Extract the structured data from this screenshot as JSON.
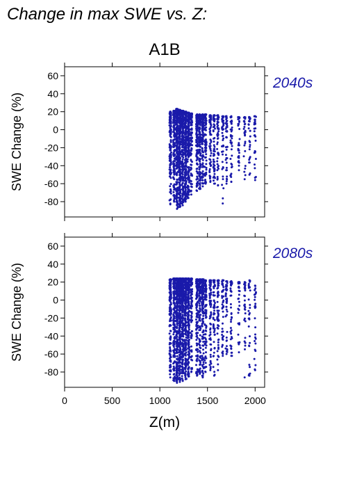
{
  "figure": {
    "title": "Change in max SWE vs. Z:",
    "scenario": "A1B",
    "xlabel": "Z(m)"
  },
  "colors": {
    "points": "#1a1aaa",
    "period_label": "#1a1aaa",
    "axes": "#000000"
  },
  "chart_data": [
    {
      "type": "scatter",
      "period": "2040s",
      "ylabel": "SWE Change (%)",
      "xlim": [
        0,
        2100
      ],
      "ylim": [
        -97,
        70
      ],
      "xticks": [
        0,
        500,
        1000,
        1500,
        2000
      ],
      "yticks": [
        -80,
        -60,
        -40,
        -20,
        0,
        20,
        40,
        60
      ],
      "show_x_tick_labels": false,
      "columns": [
        {
          "x": 1110,
          "ymin": -83,
          "ymax": 20,
          "n": 130
        },
        {
          "x": 1150,
          "ymin": -80,
          "ymax": 21,
          "n": 150
        },
        {
          "x": 1180,
          "ymin": -88,
          "ymax": 23,
          "n": 260
        },
        {
          "x": 1210,
          "ymin": -86,
          "ymax": 22,
          "n": 260
        },
        {
          "x": 1240,
          "ymin": -84,
          "ymax": 21,
          "n": 240
        },
        {
          "x": 1270,
          "ymin": -80,
          "ymax": 20,
          "n": 220
        },
        {
          "x": 1300,
          "ymin": -76,
          "ymax": 19,
          "n": 200
        },
        {
          "x": 1330,
          "ymin": -72,
          "ymax": 18,
          "n": 90
        },
        {
          "x": 1390,
          "ymin": -68,
          "ymax": 17,
          "n": 120
        },
        {
          "x": 1420,
          "ymin": -66,
          "ymax": 17,
          "n": 130
        },
        {
          "x": 1450,
          "ymin": -63,
          "ymax": 17,
          "n": 120
        },
        {
          "x": 1480,
          "ymin": -60,
          "ymax": 17,
          "n": 80
        },
        {
          "x": 1530,
          "ymin": -58,
          "ymax": 16,
          "n": 70
        },
        {
          "x": 1570,
          "ymin": -60,
          "ymax": 16,
          "n": 60
        },
        {
          "x": 1610,
          "ymin": -62,
          "ymax": 16,
          "n": 50
        },
        {
          "x": 1660,
          "ymin": -82,
          "ymax": 15,
          "n": 45
        },
        {
          "x": 1700,
          "ymin": -60,
          "ymax": 15,
          "n": 40
        },
        {
          "x": 1750,
          "ymin": -58,
          "ymax": 15,
          "n": 35
        },
        {
          "x": 1830,
          "ymin": -45,
          "ymax": 14,
          "n": 30
        },
        {
          "x": 1890,
          "ymin": -55,
          "ymax": 14,
          "n": 30
        },
        {
          "x": 1940,
          "ymin": -50,
          "ymax": 14,
          "n": 28
        },
        {
          "x": 2000,
          "ymin": -56,
          "ymax": 15,
          "n": 28
        }
      ]
    },
    {
      "type": "scatter",
      "period": "2080s",
      "ylabel": "SWE Change (%)",
      "xlim": [
        0,
        2100
      ],
      "ylim": [
        -97,
        70
      ],
      "xticks": [
        0,
        500,
        1000,
        1500,
        2000
      ],
      "xticklabels": [
        "0",
        "500",
        "1000",
        "1500",
        "2000"
      ],
      "yticks": [
        -80,
        -60,
        -40,
        -20,
        0,
        20,
        40,
        60
      ],
      "show_x_tick_labels": true,
      "columns": [
        {
          "x": 1110,
          "ymin": -86,
          "ymax": 23,
          "n": 130
        },
        {
          "x": 1150,
          "ymin": -90,
          "ymax": 24,
          "n": 160
        },
        {
          "x": 1180,
          "ymin": -92,
          "ymax": 24,
          "n": 270
        },
        {
          "x": 1210,
          "ymin": -91,
          "ymax": 24,
          "n": 270
        },
        {
          "x": 1240,
          "ymin": -90,
          "ymax": 24,
          "n": 250
        },
        {
          "x": 1270,
          "ymin": -88,
          "ymax": 24,
          "n": 230
        },
        {
          "x": 1300,
          "ymin": -85,
          "ymax": 24,
          "n": 210
        },
        {
          "x": 1330,
          "ymin": -80,
          "ymax": 24,
          "n": 90
        },
        {
          "x": 1390,
          "ymin": -84,
          "ymax": 23,
          "n": 130
        },
        {
          "x": 1420,
          "ymin": -82,
          "ymax": 23,
          "n": 130
        },
        {
          "x": 1450,
          "ymin": -86,
          "ymax": 23,
          "n": 120
        },
        {
          "x": 1480,
          "ymin": -80,
          "ymax": 22,
          "n": 80
        },
        {
          "x": 1530,
          "ymin": -78,
          "ymax": 22,
          "n": 70
        },
        {
          "x": 1570,
          "ymin": -84,
          "ymax": 22,
          "n": 60
        },
        {
          "x": 1610,
          "ymin": -78,
          "ymax": 22,
          "n": 55
        },
        {
          "x": 1660,
          "ymin": -62,
          "ymax": 22,
          "n": 45
        },
        {
          "x": 1700,
          "ymin": -60,
          "ymax": 21,
          "n": 40
        },
        {
          "x": 1750,
          "ymin": -62,
          "ymax": 21,
          "n": 38
        },
        {
          "x": 1830,
          "ymin": -58,
          "ymax": 20,
          "n": 32
        },
        {
          "x": 1890,
          "ymin": -86,
          "ymax": 20,
          "n": 32
        },
        {
          "x": 1940,
          "ymin": -84,
          "ymax": 22,
          "n": 30
        },
        {
          "x": 2000,
          "ymin": -78,
          "ymax": 16,
          "n": 30
        }
      ]
    }
  ]
}
